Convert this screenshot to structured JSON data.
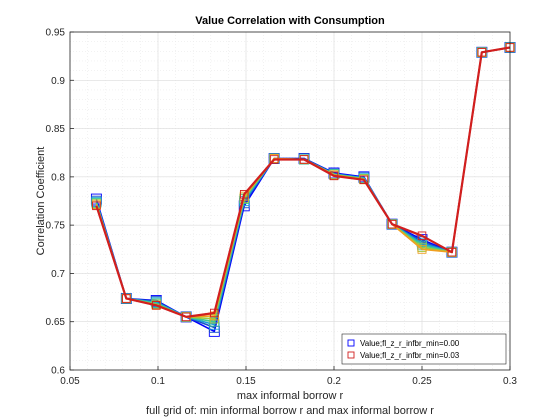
{
  "chart_data": {
    "type": "line",
    "title": "Value Correlation with Consumption",
    "xlabel": "max informal borrow r",
    "ylabel": "Correlation Coefficient",
    "footnote": "full grid of: min informal borrow r and max informal borrow r",
    "xlim": [
      0.05,
      0.3
    ],
    "ylim": [
      0.6,
      0.95
    ],
    "xticks": [
      "0.05",
      "0.1",
      "0.15",
      "0.2",
      "0.25",
      "0.3"
    ],
    "yticks": [
      "0.6",
      "0.65",
      "0.7",
      "0.75",
      "0.8",
      "0.85",
      "0.9",
      "0.95"
    ],
    "grid": true,
    "legend_position": "bottom-right",
    "x": [
      0.065,
      0.082,
      0.099,
      0.116,
      0.132,
      0.149,
      0.166,
      0.183,
      0.2,
      0.217,
      0.233,
      0.25,
      0.267,
      0.284,
      0.3
    ],
    "series": [
      {
        "name": "Value;fl_z_r_infbr_min=0.00",
        "color": "#0000ff",
        "marker": "square",
        "legend": true,
        "values": [
          0.777,
          0.674,
          0.672,
          0.655,
          0.64,
          0.77,
          0.819,
          0.819,
          0.804,
          0.8,
          0.751,
          0.735,
          0.722,
          0.929,
          0.934
        ]
      },
      {
        "name": "",
        "color": "#1a52c8",
        "marker": "square",
        "legend": false,
        "values": [
          0.775,
          0.674,
          0.671,
          0.655,
          0.644,
          0.773,
          0.819,
          0.819,
          0.803,
          0.799,
          0.751,
          0.733,
          0.722,
          0.929,
          0.934
        ]
      },
      {
        "name": "",
        "color": "#1aa0d8",
        "marker": "square",
        "legend": false,
        "values": [
          0.774,
          0.674,
          0.67,
          0.655,
          0.647,
          0.775,
          0.819,
          0.818,
          0.803,
          0.799,
          0.751,
          0.731,
          0.722,
          0.929,
          0.934
        ]
      },
      {
        "name": "",
        "color": "#3fc890",
        "marker": "square",
        "legend": false,
        "values": [
          0.773,
          0.674,
          0.669,
          0.655,
          0.65,
          0.777,
          0.819,
          0.818,
          0.803,
          0.798,
          0.751,
          0.729,
          0.722,
          0.929,
          0.934
        ]
      },
      {
        "name": "",
        "color": "#a0c83c",
        "marker": "square",
        "legend": false,
        "values": [
          0.772,
          0.674,
          0.668,
          0.655,
          0.653,
          0.778,
          0.819,
          0.818,
          0.802,
          0.798,
          0.751,
          0.727,
          0.722,
          0.929,
          0.934
        ]
      },
      {
        "name": "",
        "color": "#f0a020",
        "marker": "square",
        "legend": false,
        "values": [
          0.771,
          0.674,
          0.667,
          0.655,
          0.656,
          0.78,
          0.819,
          0.818,
          0.802,
          0.797,
          0.751,
          0.725,
          0.722,
          0.929,
          0.934
        ]
      },
      {
        "name": "Value;fl_z_r_infbr_min=0.03",
        "color": "#d21e1e",
        "marker": "square",
        "legend": true,
        "values": [
          0.77,
          0.674,
          0.667,
          0.655,
          0.659,
          0.782,
          0.818,
          0.818,
          0.801,
          0.797,
          0.751,
          0.739,
          0.722,
          0.929,
          0.934
        ]
      }
    ]
  }
}
